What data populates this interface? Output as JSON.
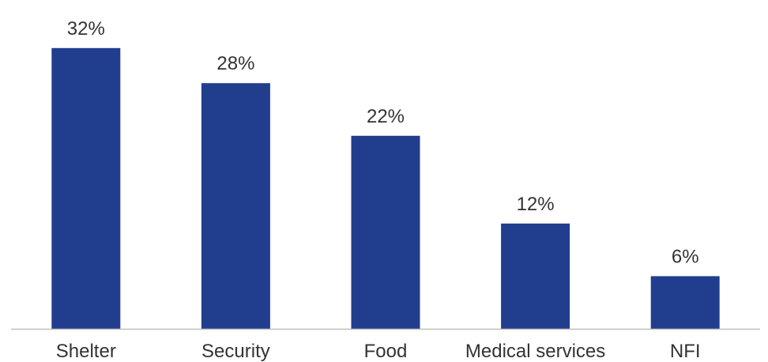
{
  "chart_data": {
    "type": "bar",
    "categories": [
      "Shelter",
      "Security",
      "Food",
      "Medical services",
      "NFI"
    ],
    "values": [
      32,
      28,
      22,
      12,
      6
    ],
    "value_labels": [
      "32%",
      "28%",
      "22%",
      "12%",
      "6%"
    ],
    "title": "",
    "xlabel": "",
    "ylabel": "",
    "ylim": [
      0,
      35
    ],
    "grid": false,
    "legend": "none",
    "bar_color": "#213E8E",
    "axis_color": "#BFBFBF"
  }
}
